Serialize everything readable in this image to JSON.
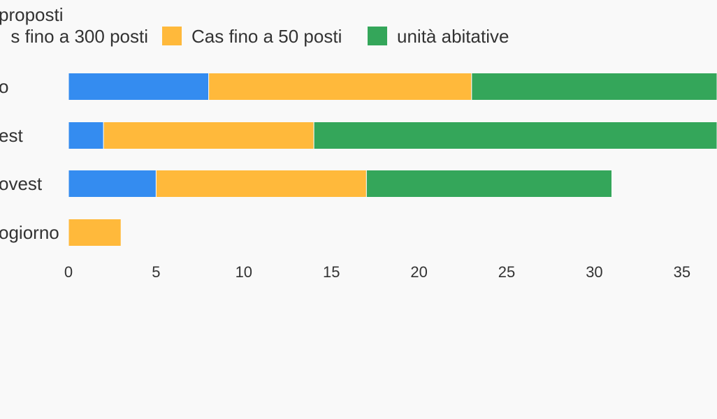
{
  "chart_data": {
    "type": "bar",
    "orientation": "horizontal",
    "stacked": true,
    "title": "proposti",
    "categories": [
      "o",
      "est",
      "ovest",
      "ogiorno"
    ],
    "series": [
      {
        "name": "s fino a 300 posti",
        "color": "#348cf0",
        "values": [
          8,
          2,
          5,
          0
        ]
      },
      {
        "name": "Cas fino a 50 posti",
        "color": "#ffb93b",
        "values": [
          15,
          12,
          12,
          3
        ]
      },
      {
        "name": "unità abitative",
        "color": "#34a65a",
        "values": [
          14,
          23,
          14,
          0
        ]
      }
    ],
    "xlim": [
      0,
      37
    ],
    "xticks": [
      0,
      5,
      10,
      15,
      20,
      25,
      30,
      35
    ]
  }
}
